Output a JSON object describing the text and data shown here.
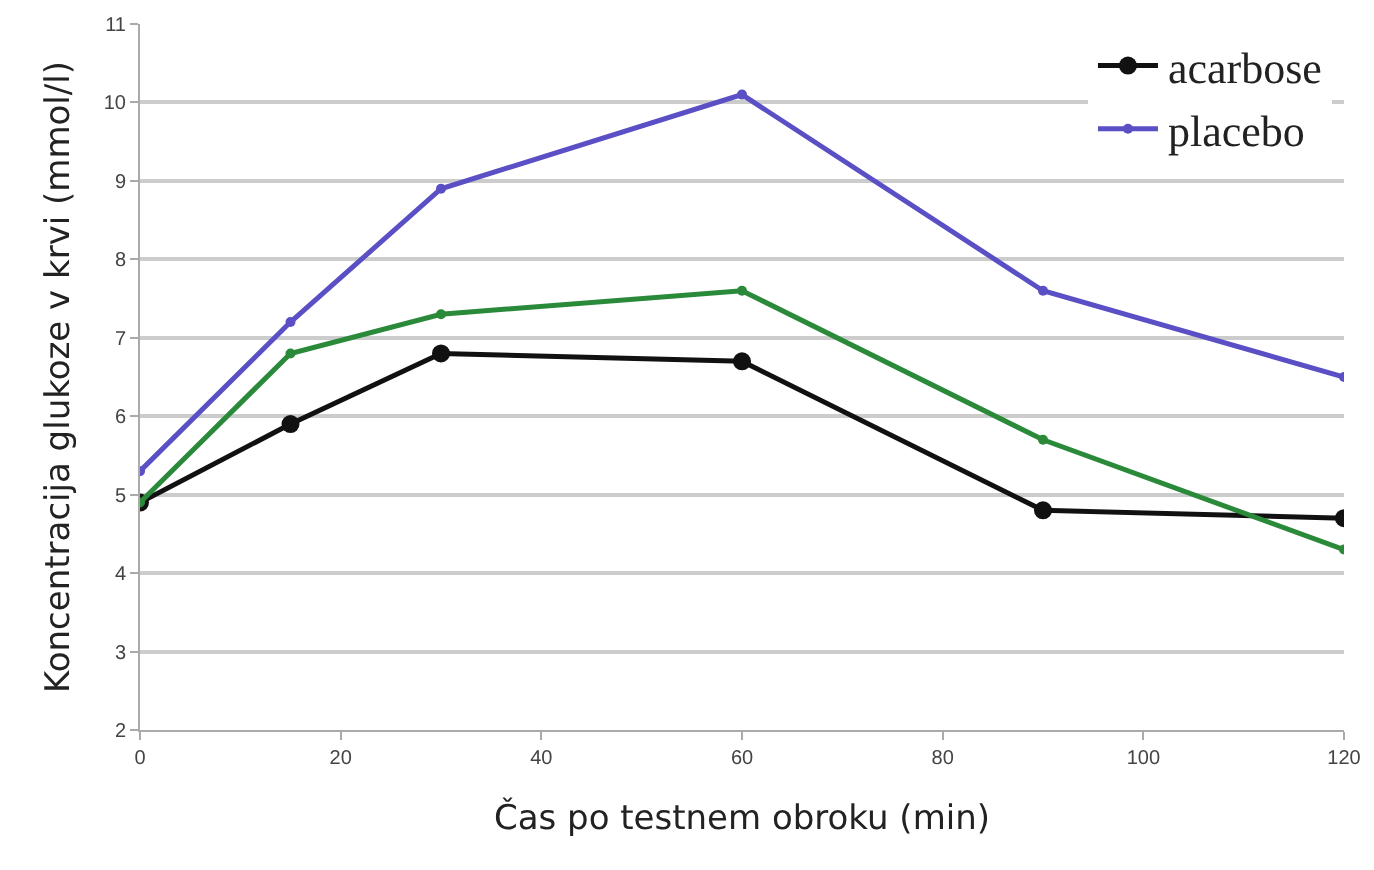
{
  "chart_data": {
    "type": "line",
    "xlabel": "Čas po testnem obroku (min)",
    "ylabel": "Koncentracija glukoze v krvi (mmol/l)",
    "x": [
      0,
      15,
      30,
      60,
      90,
      120
    ],
    "series": [
      {
        "name": "acarbose",
        "color": "#111111",
        "values": [
          4.9,
          5.9,
          6.8,
          6.7,
          4.8,
          4.7
        ]
      },
      {
        "name": "placebo",
        "color": "#5a4fc4",
        "values": [
          5.3,
          7.2,
          8.9,
          10.1,
          7.6,
          6.5
        ]
      },
      {
        "color": "#2a8a3a",
        "values": [
          4.9,
          6.8,
          7.3,
          7.6,
          5.7,
          4.3
        ]
      }
    ],
    "xlim": [
      0,
      120
    ],
    "xticks": [
      0,
      20,
      40,
      60,
      80,
      100,
      120
    ],
    "ylim": [
      2,
      11
    ],
    "yticks": [
      2,
      3,
      4,
      5,
      6,
      7,
      8,
      9,
      10,
      11
    ],
    "grid": "y",
    "legend": "top right",
    "marker": "circle",
    "line_style": "solid"
  }
}
